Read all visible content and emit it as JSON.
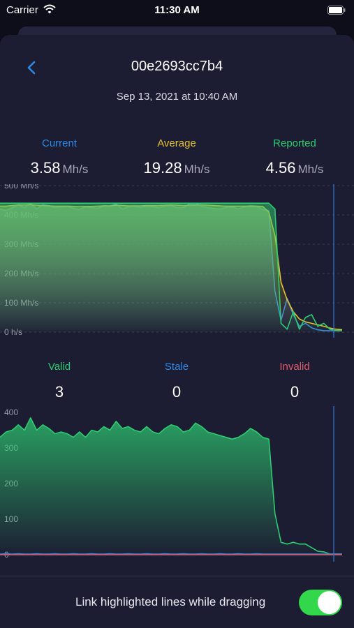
{
  "status_bar": {
    "carrier": "Carrier",
    "time": "11:30 AM"
  },
  "header": {
    "title": "00e2693cc7b4",
    "timestamp": "Sep 13, 2021 at 10:40 AM"
  },
  "hashrate": {
    "stats": [
      {
        "label": "Current",
        "value": "3.58",
        "unit": "Mh/s",
        "color": "#2e8ae6"
      },
      {
        "label": "Average",
        "value": "19.28",
        "unit": "Mh/s",
        "color": "#e6c233"
      },
      {
        "label": "Reported",
        "value": "4.56",
        "unit": "Mh/s",
        "color": "#2ecc71"
      }
    ],
    "y_ticks": [
      "0 h/s",
      "100 Mh/s",
      "200 Mh/s",
      "300 Mh/s",
      "400 Mh/s",
      "500 Mh/s"
    ]
  },
  "shares": {
    "stats": [
      {
        "label": "Valid",
        "value": "3",
        "color": "#2ecc71"
      },
      {
        "label": "Stale",
        "value": "0",
        "color": "#2e8ae6"
      },
      {
        "label": "Invalid",
        "value": "0",
        "color": "#e05a6a"
      }
    ],
    "y_ticks": [
      "0",
      "100",
      "200",
      "300",
      "400"
    ]
  },
  "chart_data": [
    {
      "type": "area",
      "y_unit": "Mh/s",
      "ylim": [
        0,
        500
      ],
      "grid": true,
      "series": [
        {
          "name": "Current",
          "color": "#2e8ae6",
          "values": [
            420,
            415,
            425,
            435,
            425,
            440,
            420,
            435,
            432,
            425,
            428,
            430,
            422,
            418,
            428,
            425,
            422,
            432,
            430,
            438,
            420,
            428,
            432,
            425,
            430,
            428,
            425,
            430,
            432,
            425,
            425,
            438,
            440,
            430,
            425,
            422,
            420,
            425,
            428,
            420,
            428,
            432,
            430,
            418,
            415,
            140,
            40,
            115,
            60,
            20,
            30,
            15,
            8,
            5,
            5,
            5,
            5
          ]
        },
        {
          "name": "Average",
          "color": "#e6c233",
          "values": [
            430,
            430,
            432,
            434,
            434,
            435,
            433,
            432,
            431,
            430,
            430,
            430,
            429,
            428,
            429,
            429,
            430,
            431,
            431,
            433,
            432,
            431,
            431,
            431,
            432,
            432,
            432,
            433,
            434,
            433,
            432,
            433,
            434,
            434,
            433,
            432,
            431,
            430,
            430,
            430,
            430,
            430,
            430,
            429,
            410,
            330,
            170,
            110,
            70,
            45,
            35,
            30,
            25,
            20,
            14,
            10,
            8
          ]
        },
        {
          "name": "Reported",
          "color": "#2ecc71",
          "values": [
            440,
            440,
            440,
            440,
            440,
            440,
            440,
            440,
            440,
            440,
            440,
            440,
            440,
            440,
            440,
            440,
            440,
            440,
            440,
            440,
            440,
            440,
            440,
            440,
            440,
            440,
            440,
            440,
            440,
            440,
            440,
            440,
            440,
            440,
            440,
            440,
            440,
            440,
            440,
            440,
            440,
            440,
            440,
            440,
            440,
            420,
            30,
            10,
            70,
            10,
            50,
            60,
            20,
            30,
            10,
            5,
            5
          ]
        }
      ]
    },
    {
      "type": "area",
      "ylim": [
        0,
        400
      ],
      "grid": false,
      "series": [
        {
          "name": "Valid",
          "color": "#2ecc71",
          "values": [
            330,
            345,
            350,
            365,
            350,
            385,
            350,
            365,
            355,
            340,
            345,
            340,
            330,
            345,
            330,
            350,
            345,
            360,
            350,
            375,
            355,
            360,
            350,
            345,
            360,
            345,
            340,
            355,
            365,
            360,
            345,
            350,
            370,
            360,
            345,
            340,
            335,
            330,
            325,
            330,
            340,
            355,
            345,
            330,
            325,
            115,
            35,
            30,
            35,
            30,
            30,
            20,
            10,
            8,
            2,
            2,
            2
          ]
        },
        {
          "name": "Stale",
          "color": "#2e8ae6",
          "values": [
            2,
            3,
            2,
            3,
            2,
            2,
            3,
            2,
            2,
            3,
            2,
            2,
            3,
            2,
            2,
            3,
            2,
            2,
            3,
            2,
            2,
            3,
            2,
            2,
            3,
            2,
            2,
            3,
            2,
            2,
            3,
            2,
            2,
            3,
            2,
            2,
            3,
            2,
            2,
            3,
            2,
            2,
            3,
            2,
            2,
            2,
            2,
            2,
            2,
            2,
            2,
            2,
            2,
            2,
            2,
            2,
            2
          ]
        },
        {
          "name": "Invalid",
          "color": "#e05a6a",
          "values": [
            0,
            0,
            0,
            0,
            0,
            0,
            0,
            0,
            0,
            0,
            0,
            0,
            0,
            0,
            0,
            0,
            0,
            0,
            0,
            0,
            0,
            0,
            0,
            0,
            0,
            0,
            0,
            0,
            0,
            0,
            0,
            0,
            0,
            0,
            0,
            0,
            0,
            0,
            0,
            0,
            0,
            0,
            0,
            0,
            0,
            0,
            0,
            0,
            0,
            0,
            0,
            0,
            0,
            0,
            0,
            0,
            0
          ]
        }
      ]
    }
  ],
  "footer": {
    "toggle_label": "Link highlighted lines while dragging",
    "toggle_on": true
  }
}
